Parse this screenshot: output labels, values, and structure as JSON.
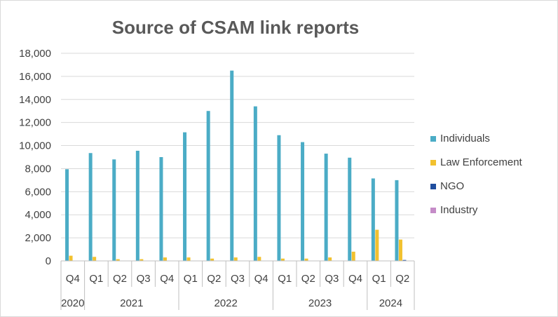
{
  "chart_data": {
    "type": "bar",
    "title": "Source of CSAM link reports",
    "xlabel": "",
    "ylabel": "",
    "ylim": [
      0,
      18000
    ],
    "yticks": [
      0,
      2000,
      4000,
      6000,
      8000,
      10000,
      12000,
      14000,
      16000,
      18000
    ],
    "ytick_labels": [
      "0",
      "2,000",
      "4,000",
      "6,000",
      "8,000",
      "10,000",
      "12,000",
      "14,000",
      "16,000",
      "18,000"
    ],
    "categories": [
      "Q4",
      "Q1",
      "Q2",
      "Q3",
      "Q4",
      "Q1",
      "Q2",
      "Q3",
      "Q4",
      "Q1",
      "Q2",
      "Q3",
      "Q4",
      "Q1",
      "Q2"
    ],
    "year_groups": [
      {
        "label": "2020",
        "count": 1
      },
      {
        "label": "2021",
        "count": 4
      },
      {
        "label": "2022",
        "count": 4
      },
      {
        "label": "2023",
        "count": 4
      },
      {
        "label": "2024",
        "count": 2
      }
    ],
    "series": [
      {
        "name": "Individuals",
        "color": "#4bacc6",
        "values": [
          7950,
          9350,
          8800,
          9550,
          9000,
          11150,
          13000,
          16500,
          13400,
          10900,
          10300,
          9300,
          8950,
          7150,
          7000
        ]
      },
      {
        "name": "Law Enforcement",
        "color": "#f2c12e",
        "values": [
          450,
          350,
          150,
          150,
          300,
          300,
          200,
          300,
          350,
          200,
          200,
          300,
          800,
          2700,
          1850
        ]
      },
      {
        "name": "NGO",
        "color": "#1f4e9e",
        "values": [
          30,
          20,
          20,
          20,
          20,
          20,
          20,
          20,
          20,
          20,
          20,
          20,
          20,
          30,
          80
        ]
      },
      {
        "name": "Industry",
        "color": "#c58cc8",
        "values": [
          0,
          0,
          0,
          0,
          0,
          0,
          0,
          0,
          0,
          0,
          0,
          0,
          0,
          0,
          0
        ]
      }
    ],
    "legend_position": "right",
    "grid": true
  }
}
